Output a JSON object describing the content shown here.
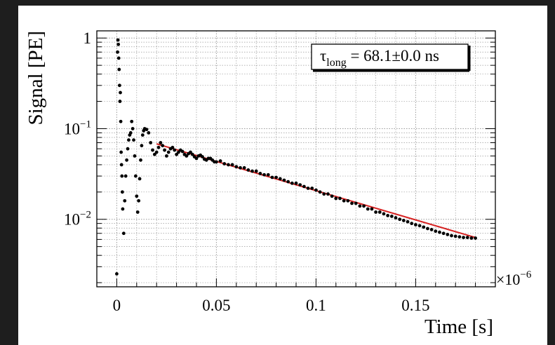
{
  "chart_data": {
    "type": "scatter",
    "ylabel": "Signal [PE]",
    "xlabel": "Time [s]",
    "x_exponent_label": "×10",
    "x_exponent_power": "−6",
    "x_ticks": [
      {
        "value": 0,
        "label": "0"
      },
      {
        "value": 0.05,
        "label": "0.05"
      },
      {
        "value": 0.1,
        "label": "0.1"
      },
      {
        "value": 0.15,
        "label": "0.15"
      }
    ],
    "y_ticks": [
      {
        "value": 1,
        "label": "1",
        "base": "1",
        "exp": ""
      },
      {
        "value": 0.1,
        "label": "10^-1",
        "base": "10",
        "exp": "−1"
      },
      {
        "value": 0.01,
        "label": "10^-2",
        "base": "10",
        "exp": "−2"
      }
    ],
    "xlim": [
      -0.01,
      0.19
    ],
    "ylim": [
      0.0018,
      1.2
    ],
    "y_scale": "log",
    "grid": true,
    "annotation": {
      "tau_symbol": "τ",
      "tau_subscript": "long",
      "text": " = 68.1±0.0 ns"
    },
    "colors": {
      "points": "#000000",
      "fit": "#d62222",
      "grid": "#9a9a9a"
    },
    "fit": {
      "x_start": 0.02,
      "x_end": 0.18,
      "y_start": 0.068,
      "y_end": 0.0063
    },
    "series": [
      {
        "values": [
          [
            0.0,
            0.0025
          ],
          [
            0.0004,
            0.7
          ],
          [
            0.0006,
            0.95
          ],
          [
            0.0008,
            0.85
          ],
          [
            0.001,
            0.6
          ],
          [
            0.0012,
            0.45
          ],
          [
            0.0014,
            0.3
          ],
          [
            0.0016,
            0.2
          ],
          [
            0.0018,
            0.25
          ],
          [
            0.002,
            0.12
          ],
          [
            0.0022,
            0.055
          ],
          [
            0.0024,
            0.04
          ],
          [
            0.0026,
            0.03
          ],
          [
            0.0028,
            0.02
          ],
          [
            0.003,
            0.013
          ],
          [
            0.0035,
            0.007
          ],
          [
            0.004,
            0.016
          ],
          [
            0.0045,
            0.03
          ],
          [
            0.005,
            0.045
          ],
          [
            0.0055,
            0.06
          ],
          [
            0.006,
            0.075
          ],
          [
            0.0065,
            0.085
          ],
          [
            0.007,
            0.09
          ],
          [
            0.0075,
            0.12
          ],
          [
            0.008,
            0.1
          ],
          [
            0.0085,
            0.075
          ],
          [
            0.009,
            0.05
          ],
          [
            0.0095,
            0.03
          ],
          [
            0.01,
            0.018
          ],
          [
            0.0105,
            0.012
          ],
          [
            0.011,
            0.016
          ],
          [
            0.0115,
            0.028
          ],
          [
            0.012,
            0.045
          ],
          [
            0.0125,
            0.065
          ],
          [
            0.013,
            0.085
          ],
          [
            0.0135,
            0.095
          ],
          [
            0.014,
            0.1
          ],
          [
            0.015,
            0.098
          ],
          [
            0.016,
            0.09
          ],
          [
            0.017,
            0.07
          ],
          [
            0.018,
            0.058
          ],
          [
            0.019,
            0.052
          ],
          [
            0.02,
            0.055
          ],
          [
            0.021,
            0.062
          ],
          [
            0.022,
            0.07
          ],
          [
            0.023,
            0.065
          ],
          [
            0.024,
            0.058
          ],
          [
            0.025,
            0.05
          ],
          [
            0.026,
            0.055
          ],
          [
            0.027,
            0.06
          ],
          [
            0.028,
            0.062
          ],
          [
            0.029,
            0.058
          ],
          [
            0.03,
            0.052
          ],
          [
            0.031,
            0.055
          ],
          [
            0.032,
            0.058
          ],
          [
            0.033,
            0.056
          ],
          [
            0.034,
            0.052
          ],
          [
            0.035,
            0.05
          ],
          [
            0.036,
            0.053
          ],
          [
            0.037,
            0.055
          ],
          [
            0.038,
            0.052
          ],
          [
            0.039,
            0.049
          ],
          [
            0.04,
            0.047
          ],
          [
            0.041,
            0.05
          ],
          [
            0.042,
            0.051
          ],
          [
            0.043,
            0.049
          ],
          [
            0.044,
            0.046
          ],
          [
            0.045,
            0.045
          ],
          [
            0.046,
            0.047
          ],
          [
            0.047,
            0.047
          ],
          [
            0.048,
            0.045
          ],
          [
            0.049,
            0.043
          ],
          [
            0.05,
            0.043
          ],
          [
            0.052,
            0.044
          ],
          [
            0.054,
            0.041
          ],
          [
            0.056,
            0.04
          ],
          [
            0.058,
            0.04
          ],
          [
            0.06,
            0.038
          ],
          [
            0.062,
            0.037
          ],
          [
            0.064,
            0.037
          ],
          [
            0.066,
            0.035
          ],
          [
            0.068,
            0.034
          ],
          [
            0.07,
            0.034
          ],
          [
            0.072,
            0.032
          ],
          [
            0.074,
            0.031
          ],
          [
            0.076,
            0.031
          ],
          [
            0.078,
            0.029
          ],
          [
            0.08,
            0.029
          ],
          [
            0.082,
            0.028
          ],
          [
            0.084,
            0.027
          ],
          [
            0.086,
            0.026
          ],
          [
            0.088,
            0.025
          ],
          [
            0.09,
            0.025
          ],
          [
            0.092,
            0.024
          ],
          [
            0.094,
            0.023
          ],
          [
            0.096,
            0.022
          ],
          [
            0.098,
            0.022
          ],
          [
            0.1,
            0.021
          ],
          [
            0.102,
            0.02
          ],
          [
            0.104,
            0.019
          ],
          [
            0.106,
            0.019
          ],
          [
            0.108,
            0.018
          ],
          [
            0.11,
            0.017
          ],
          [
            0.112,
            0.017
          ],
          [
            0.114,
            0.016
          ],
          [
            0.116,
            0.016
          ],
          [
            0.118,
            0.015
          ],
          [
            0.12,
            0.015
          ],
          [
            0.122,
            0.014
          ],
          [
            0.124,
            0.014
          ],
          [
            0.126,
            0.013
          ],
          [
            0.128,
            0.013
          ],
          [
            0.13,
            0.012
          ],
          [
            0.132,
            0.012
          ],
          [
            0.134,
            0.0115
          ],
          [
            0.136,
            0.011
          ],
          [
            0.138,
            0.0108
          ],
          [
            0.14,
            0.0104
          ],
          [
            0.142,
            0.01
          ],
          [
            0.144,
            0.0097
          ],
          [
            0.146,
            0.0094
          ],
          [
            0.148,
            0.009
          ],
          [
            0.15,
            0.0087
          ],
          [
            0.152,
            0.0085
          ],
          [
            0.154,
            0.0082
          ],
          [
            0.156,
            0.0079
          ],
          [
            0.158,
            0.0077
          ],
          [
            0.16,
            0.0074
          ],
          [
            0.162,
            0.0072
          ],
          [
            0.164,
            0.007
          ],
          [
            0.166,
            0.0068
          ],
          [
            0.168,
            0.0066
          ],
          [
            0.17,
            0.0065
          ],
          [
            0.172,
            0.0064
          ],
          [
            0.174,
            0.0063
          ],
          [
            0.176,
            0.0063
          ],
          [
            0.178,
            0.0062
          ],
          [
            0.18,
            0.0062
          ]
        ]
      }
    ]
  }
}
